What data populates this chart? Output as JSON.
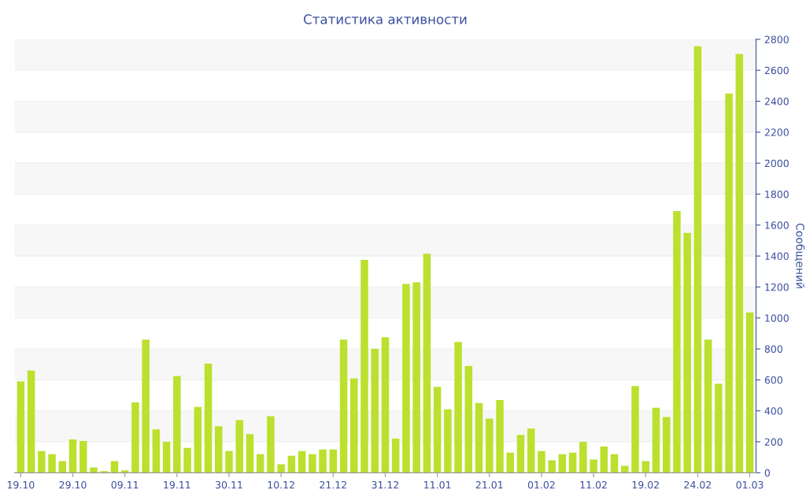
{
  "chart_data": {
    "type": "bar",
    "title": "Статистика активности",
    "ylabel": "Сообщений",
    "categories": [
      "19.10",
      null,
      null,
      null,
      null,
      "29.10",
      null,
      null,
      null,
      null,
      "09.11",
      null,
      null,
      null,
      null,
      "19.11",
      null,
      null,
      null,
      null,
      "30.11",
      null,
      null,
      null,
      null,
      "10.12",
      null,
      null,
      null,
      null,
      "21.12",
      null,
      null,
      null,
      null,
      "31.12",
      null,
      null,
      null,
      null,
      "11.01",
      null,
      null,
      null,
      null,
      "21.01",
      null,
      null,
      null,
      null,
      "01.02",
      null,
      null,
      null,
      null,
      "11.02",
      null,
      null,
      null,
      null,
      "19.02",
      null,
      null,
      null,
      null,
      "24.02",
      null,
      null,
      null,
      null,
      "01.03"
    ],
    "values": [
      590,
      660,
      140,
      120,
      75,
      215,
      205,
      35,
      10,
      75,
      15,
      455,
      860,
      280,
      200,
      625,
      160,
      425,
      705,
      300,
      140,
      340,
      250,
      120,
      365,
      55,
      110,
      140,
      120,
      150,
      150,
      860,
      610,
      1375,
      800,
      875,
      220,
      1220,
      1230,
      1415,
      555,
      410,
      845,
      690,
      450,
      350,
      470,
      130,
      245,
      285,
      140,
      80,
      120,
      130,
      200,
      85,
      170,
      120,
      45,
      560,
      75,
      420,
      360,
      1690,
      1550,
      2755,
      860,
      575,
      2450,
      2705,
      1035
    ],
    "color": "#bbe02e",
    "ylim": [
      0,
      2800
    ],
    "yticks": [
      0,
      200,
      400,
      600,
      800,
      1000,
      1200,
      1400,
      1600,
      1800,
      2000,
      2200,
      2400,
      2600,
      2800
    ],
    "grid": "y"
  }
}
